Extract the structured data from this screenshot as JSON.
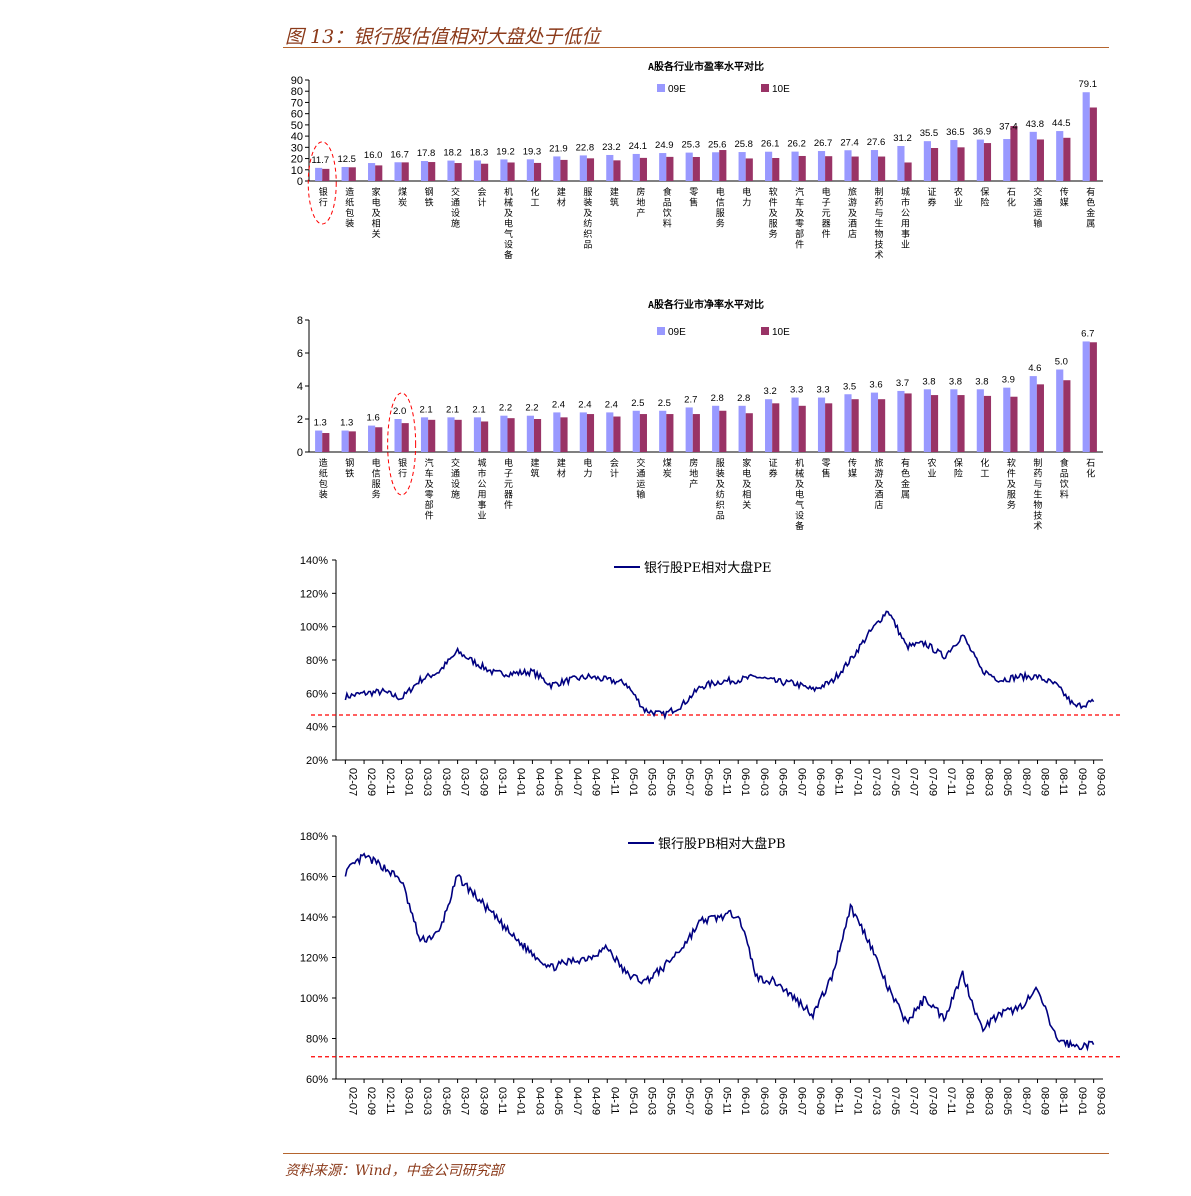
{
  "figure_title": "图 13：银行股估值相对大盘处于低位",
  "source": "资料来源：Wind，中金公司研究部",
  "colors": {
    "s09": "#9999FF",
    "s10": "#993366",
    "line": "#000080",
    "ref": "#FF0000",
    "accent": "#B5652E"
  },
  "chart_data": [
    {
      "type": "bar",
      "title": "A股各行业市盈率水平对比",
      "ylim": [
        0,
        90
      ],
      "yticks": [
        0,
        10,
        20,
        30,
        40,
        50,
        60,
        70,
        80,
        90
      ],
      "highlight_category": "银行",
      "categories": [
        "银行",
        "造纸包装",
        "家电及相关",
        "煤炭",
        "钢铁",
        "交通设施",
        "会计",
        "机械及电气设备",
        "化工",
        "建材",
        "服装及纺织品",
        "建筑",
        "房地产",
        "食品饮料",
        "零售",
        "电信服务",
        "电力",
        "软件及服务",
        "汽车及零部件",
        "电子元器件",
        "旅游及酒店",
        "制药与生物技术",
        "城市公用事业",
        "证券",
        "农业",
        "保险",
        "石化",
        "交通运输",
        "传媒",
        "有色金属"
      ],
      "series": [
        {
          "name": "09E",
          "values": [
            11.7,
            12.5,
            16.0,
            16.7,
            17.8,
            18.2,
            18.3,
            19.2,
            19.3,
            21.9,
            22.8,
            23.2,
            24.1,
            24.9,
            25.3,
            25.6,
            25.8,
            26.1,
            26.2,
            26.7,
            27.4,
            27.6,
            31.2,
            35.5,
            36.5,
            36.9,
            37.4,
            43.8,
            44.5,
            79.1
          ]
        },
        {
          "name": "10E",
          "values": [
            10.8,
            12.2,
            13.9,
            16.6,
            16.9,
            16.0,
            15.4,
            16.5,
            16.1,
            18.8,
            20.2,
            18.4,
            20.6,
            21.5,
            21.4,
            27.6,
            20.1,
            20.5,
            22.3,
            22.1,
            21.8,
            21.8,
            16.5,
            29.4,
            30.0,
            33.8,
            49.0,
            37.0,
            38.5,
            65.5
          ]
        }
      ],
      "data_labels": [
        "11.7",
        "12.5",
        "16.0",
        "16.7",
        "17.8",
        "18.2",
        "18.3",
        "19.2",
        "19.3",
        "21.9",
        "22.8",
        "23.2",
        "24.1",
        "24.9",
        "25.3",
        "25.6",
        "25.8",
        "26.1",
        "26.2",
        "26.7",
        "27.4",
        "27.6",
        "31.2",
        "35.5",
        "36.5",
        "36.9",
        "37.4",
        "43.8",
        "44.5",
        "79.1"
      ]
    },
    {
      "type": "bar",
      "title": "A股各行业市净率水平对比",
      "ylim": [
        0,
        8
      ],
      "yticks": [
        0,
        2,
        4,
        6,
        8
      ],
      "highlight_category": "银行",
      "categories": [
        "造纸包装",
        "钢铁",
        "电信服务",
        "银行",
        "汽车及零部件",
        "交通设施",
        "城市公用事业",
        "电子元器件",
        "建筑",
        "建材",
        "电力",
        "会计",
        "交通运输",
        "煤炭",
        "房地产",
        "服装及纺织品",
        "家电及相关",
        "证券",
        "机械及电气设备",
        "零售",
        "传媒",
        "旅游及酒店",
        "有色金属",
        "农业",
        "保险",
        "化工",
        "软件及服务",
        "制药与生物技术",
        "食品饮料",
        "石化"
      ],
      "series": [
        {
          "name": "09E",
          "values": [
            1.3,
            1.3,
            1.6,
            2.0,
            2.1,
            2.1,
            2.1,
            2.2,
            2.2,
            2.4,
            2.4,
            2.4,
            2.5,
            2.5,
            2.7,
            2.8,
            2.8,
            3.2,
            3.3,
            3.3,
            3.5,
            3.6,
            3.7,
            3.8,
            3.8,
            3.8,
            3.9,
            4.6,
            5.0,
            6.7
          ]
        },
        {
          "name": "10E",
          "values": [
            1.15,
            1.25,
            1.5,
            1.75,
            1.95,
            1.95,
            1.85,
            2.05,
            2.0,
            2.1,
            2.3,
            2.15,
            2.3,
            2.3,
            2.3,
            2.5,
            2.35,
            2.95,
            2.8,
            2.95,
            3.2,
            3.2,
            3.55,
            3.45,
            3.45,
            3.4,
            3.35,
            4.1,
            4.35,
            6.65
          ]
        }
      ],
      "data_labels": [
        "1.3",
        "1.3",
        "1.6",
        "2.0",
        "2.1",
        "2.1",
        "2.1",
        "2.2",
        "2.2",
        "2.4",
        "2.4",
        "2.4",
        "2.5",
        "2.5",
        "2.7",
        "2.8",
        "2.8",
        "3.2",
        "3.3",
        "3.3",
        "3.5",
        "3.6",
        "3.7",
        "3.8",
        "3.8",
        "3.8",
        "3.9",
        "4.6",
        "5.0",
        "6.7"
      ]
    },
    {
      "type": "line",
      "series_name": "银行股PE相对大盘PE",
      "ylim": [
        20,
        140
      ],
      "yticks": [
        "20%",
        "40%",
        "60%",
        "80%",
        "100%",
        "120%",
        "140%"
      ],
      "reference_line": 47,
      "x": [
        "02-07",
        "02-09",
        "02-11",
        "03-01",
        "03-03",
        "03-05",
        "03-07",
        "03-09",
        "03-11",
        "04-01",
        "04-03",
        "04-05",
        "04-07",
        "04-09",
        "04-11",
        "05-01",
        "05-03",
        "05-05",
        "05-07",
        "05-09",
        "05-11",
        "06-01",
        "06-03",
        "06-05",
        "06-07",
        "06-09",
        "06-11",
        "07-01",
        "07-03",
        "07-05",
        "07-07",
        "07-09",
        "07-11",
        "08-01",
        "08-03",
        "08-05",
        "08-07",
        "08-09",
        "08-11",
        "09-01",
        "09-03"
      ],
      "values": [
        58,
        60,
        61,
        57,
        68,
        73,
        85,
        78,
        72,
        72,
        73,
        65,
        68,
        70,
        68,
        66,
        50,
        47,
        53,
        64,
        67,
        68,
        70,
        67,
        66,
        62,
        67,
        80,
        96,
        110,
        88,
        90,
        82,
        95,
        74,
        68,
        70,
        70,
        65,
        52,
        55
      ]
    },
    {
      "type": "line",
      "series_name": "银行股PB相对大盘PB",
      "ylim": [
        60,
        180
      ],
      "yticks": [
        "60%",
        "80%",
        "100%",
        "120%",
        "140%",
        "160%",
        "180%"
      ],
      "reference_line": 71,
      "x": [
        "02-07",
        "02-09",
        "02-11",
        "03-01",
        "03-03",
        "03-05",
        "03-07",
        "03-09",
        "03-11",
        "04-01",
        "04-03",
        "04-05",
        "04-07",
        "04-09",
        "04-11",
        "05-01",
        "05-03",
        "05-05",
        "05-07",
        "05-09",
        "05-11",
        "06-01",
        "06-03",
        "06-05",
        "06-07",
        "06-09",
        "06-11",
        "07-01",
        "07-03",
        "07-05",
        "07-07",
        "07-09",
        "07-11",
        "08-01",
        "08-03",
        "08-05",
        "08-07",
        "08-09",
        "08-11",
        "09-01",
        "09-03"
      ],
      "values": [
        162,
        170,
        165,
        158,
        128,
        132,
        160,
        150,
        140,
        130,
        122,
        115,
        118,
        120,
        125,
        112,
        108,
        115,
        125,
        138,
        140,
        142,
        110,
        108,
        100,
        92,
        110,
        145,
        128,
        105,
        88,
        100,
        90,
        112,
        85,
        92,
        95,
        104,
        80,
        76,
        77
      ]
    }
  ]
}
